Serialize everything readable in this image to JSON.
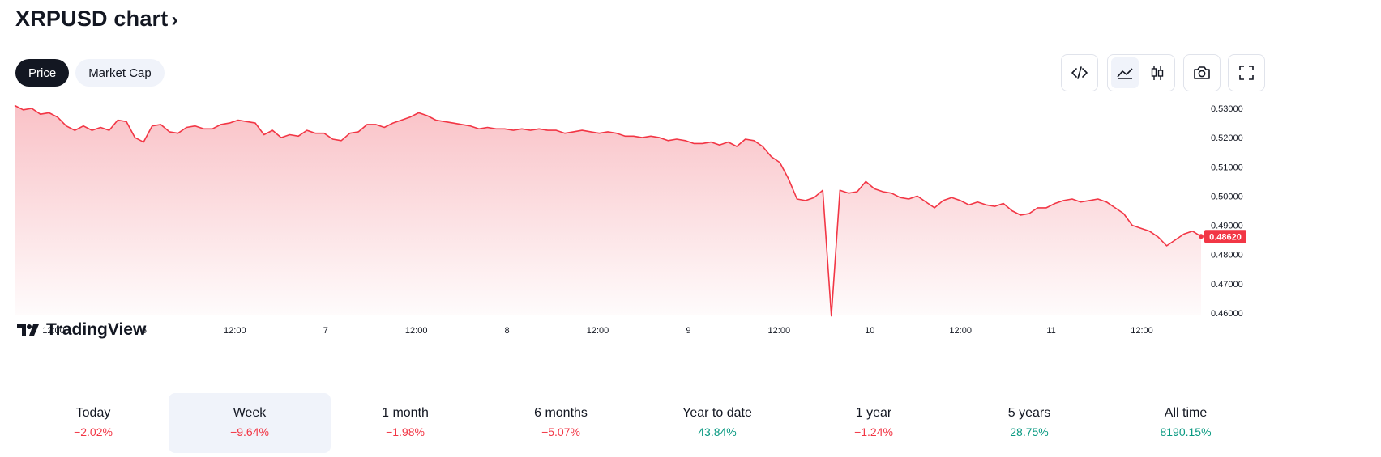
{
  "header": {
    "title": "XRPUSD chart",
    "chevron": "›"
  },
  "tabs": [
    {
      "label": "Price",
      "active": true
    },
    {
      "label": "Market Cap",
      "active": false
    }
  ],
  "toolbar": {
    "icons": [
      "embed-code-icon",
      "area-chart-icon",
      "candlestick-icon",
      "camera-icon",
      "fullscreen-icon"
    ],
    "selected": "area-chart-icon"
  },
  "logo": {
    "text": "TradingView"
  },
  "colors": {
    "line": "#f23645",
    "fill_top": "#f8b7bd",
    "negative": "#f23645",
    "positive": "#089981",
    "price_tag": "#f23645"
  },
  "chart_data": {
    "type": "area",
    "x_ticks": [
      "12:00",
      "6",
      "12:00",
      "7",
      "12:00",
      "8",
      "12:00",
      "9",
      "12:00",
      "10",
      "12:00",
      "11",
      "12:00"
    ],
    "y_ticks": [
      "0.53000",
      "0.52000",
      "0.51000",
      "0.50000",
      "0.49000",
      "0.48000",
      "0.47000",
      "0.46000"
    ],
    "ylim": [
      0.46,
      0.53
    ],
    "last_price": "0.48620",
    "series": [
      {
        "values": [
          0.531,
          0.5295,
          0.53,
          0.528,
          0.5285,
          0.527,
          0.524,
          0.5225,
          0.524,
          0.5225,
          0.5235,
          0.5225,
          0.526,
          0.5255,
          0.52,
          0.5185,
          0.524,
          0.5245,
          0.522,
          0.5215,
          0.5235,
          0.524,
          0.523,
          0.523,
          0.5245,
          0.525,
          0.526,
          0.5255,
          0.525,
          0.521,
          0.5225,
          0.52,
          0.521,
          0.5205,
          0.5225,
          0.5215,
          0.5215,
          0.5195,
          0.519,
          0.5215,
          0.522,
          0.5245,
          0.5245,
          0.5235,
          0.525,
          0.526,
          0.527,
          0.5285,
          0.5275,
          0.526,
          0.5255,
          0.525,
          0.5245,
          0.524,
          0.523,
          0.5235,
          0.523,
          0.523,
          0.5225,
          0.523,
          0.5225,
          0.523,
          0.5225,
          0.5225,
          0.5215,
          0.522,
          0.5225,
          0.522,
          0.5215,
          0.522,
          0.5215,
          0.5205,
          0.5205,
          0.52,
          0.5205,
          0.52,
          0.519,
          0.5195,
          0.519,
          0.518,
          0.518,
          0.5185,
          0.5175,
          0.5185,
          0.517,
          0.5195,
          0.519,
          0.517,
          0.5135,
          0.5115,
          0.506,
          0.499,
          0.4985,
          0.4995,
          0.502,
          0.459,
          0.502,
          0.501,
          0.5015,
          0.505,
          0.5025,
          0.5015,
          0.501,
          0.4995,
          0.499,
          0.5,
          0.498,
          0.496,
          0.4985,
          0.4995,
          0.4985,
          0.497,
          0.498,
          0.497,
          0.4965,
          0.4975,
          0.495,
          0.4935,
          0.494,
          0.496,
          0.496,
          0.4975,
          0.4985,
          0.499,
          0.498,
          0.4985,
          0.499,
          0.498,
          0.496,
          0.494,
          0.49,
          0.489,
          0.488,
          0.486,
          0.483,
          0.485,
          0.487,
          0.488,
          0.4862
        ]
      }
    ]
  },
  "performance": [
    {
      "label": "Today",
      "value": "−2.02%",
      "direction": "neg",
      "active": false
    },
    {
      "label": "Week",
      "value": "−9.64%",
      "direction": "neg",
      "active": true
    },
    {
      "label": "1 month",
      "value": "−1.98%",
      "direction": "neg",
      "active": false
    },
    {
      "label": "6 months",
      "value": "−5.07%",
      "direction": "neg",
      "active": false
    },
    {
      "label": "Year to date",
      "value": "43.84%",
      "direction": "pos",
      "active": false
    },
    {
      "label": "1 year",
      "value": "−1.24%",
      "direction": "neg",
      "active": false
    },
    {
      "label": "5 years",
      "value": "28.75%",
      "direction": "pos",
      "active": false
    },
    {
      "label": "All time",
      "value": "8190.15%",
      "direction": "pos",
      "active": false
    }
  ]
}
